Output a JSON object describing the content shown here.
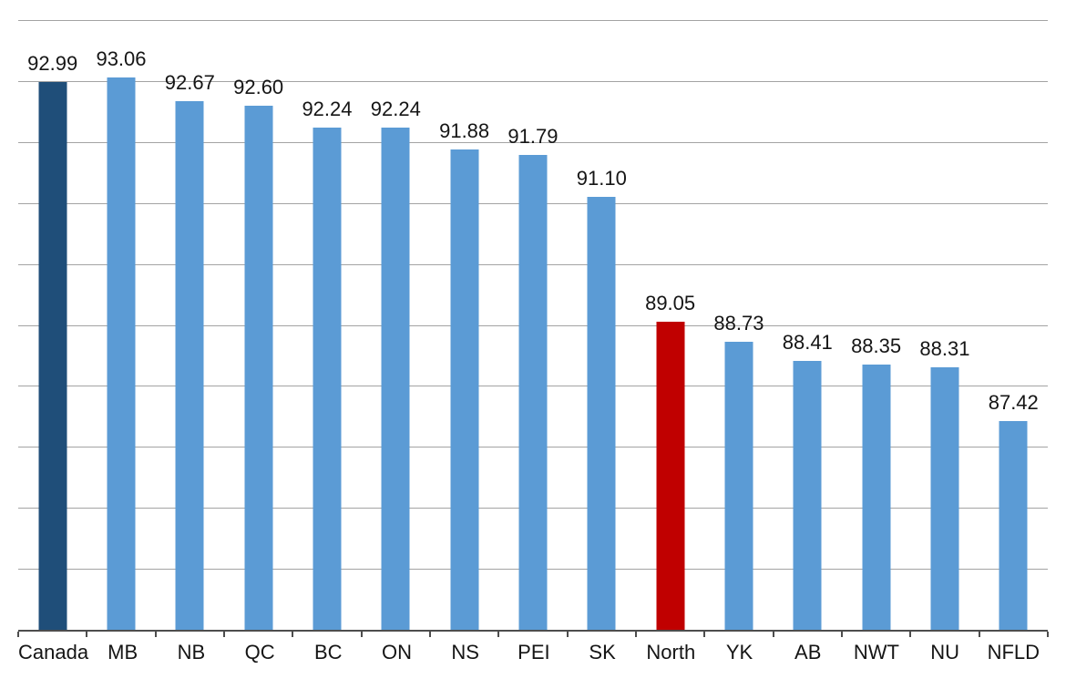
{
  "chart_data": {
    "type": "bar",
    "title": "",
    "xlabel": "",
    "ylabel": "",
    "categories": [
      "Canada",
      "MB",
      "NB",
      "QC",
      "BC",
      "ON",
      "NS",
      "PEI",
      "SK",
      "North",
      "YK",
      "AB",
      "NWT",
      "NU",
      "NFLD"
    ],
    "values": [
      92.99,
      93.06,
      92.67,
      92.6,
      92.24,
      92.24,
      91.88,
      91.79,
      91.1,
      89.05,
      88.73,
      88.41,
      88.35,
      88.31,
      87.42
    ],
    "data_labels": [
      "92.99",
      "93.06",
      "92.67",
      "92.60",
      "92.24",
      "92.24",
      "91.88",
      "91.79",
      "91.10",
      "89.05",
      "88.73",
      "88.41",
      "88.35",
      "88.31",
      "87.42"
    ],
    "point_colors": [
      "#1F4E79",
      "#5B9BD5",
      "#5B9BD5",
      "#5B9BD5",
      "#5B9BD5",
      "#5B9BD5",
      "#5B9BD5",
      "#5B9BD5",
      "#5B9BD5",
      "#C00000",
      "#5B9BD5",
      "#5B9BD5",
      "#5B9BD5",
      "#5B9BD5",
      "#5B9BD5"
    ],
    "ylim": [
      84,
      94
    ],
    "gridline_step": 1,
    "grid": true,
    "legend": "none",
    "y_axis_tick_labels": "none",
    "colors": {
      "bar_default": "#5B9BD5",
      "bar_highlight_dark": "#1F4E79",
      "bar_highlight_red": "#C00000",
      "gridline": "#a3a3a3",
      "axis_line": "#4d4d4d",
      "label_text": "#151515"
    }
  }
}
